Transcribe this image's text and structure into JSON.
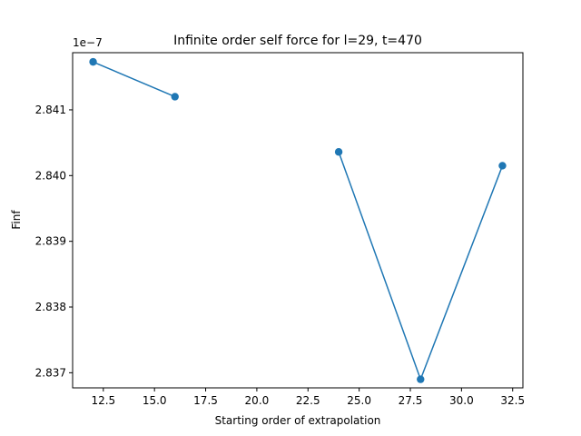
{
  "chart_data": {
    "type": "line",
    "title": "Infinite order self force for l=29, t=470",
    "xlabel": "Starting order of extrapolation",
    "ylabel": "Finf",
    "y_offset_label": "1e−7",
    "xlim": [
      11.0,
      33.0
    ],
    "ylim": [
      2.83677,
      2.84187
    ],
    "xticks": [
      12.5,
      15.0,
      17.5,
      20.0,
      22.5,
      25.0,
      27.5,
      30.0,
      32.5
    ],
    "xtick_labels": [
      "12.5",
      "15.0",
      "17.5",
      "20.0",
      "22.5",
      "25.0",
      "27.5",
      "30.0",
      "32.5"
    ],
    "yticks": [
      2.837,
      2.838,
      2.839,
      2.84,
      2.841
    ],
    "ytick_labels": [
      "2.837",
      "2.838",
      "2.839",
      "2.840",
      "2.841"
    ],
    "grid": false,
    "series": [
      {
        "color": "#1f77b4",
        "marker": "circle",
        "x": [
          12,
          16,
          20,
          24,
          28,
          32
        ],
        "y": [
          2.84173,
          2.8412,
          null,
          2.84036,
          2.8369,
          2.84015
        ]
      }
    ]
  }
}
